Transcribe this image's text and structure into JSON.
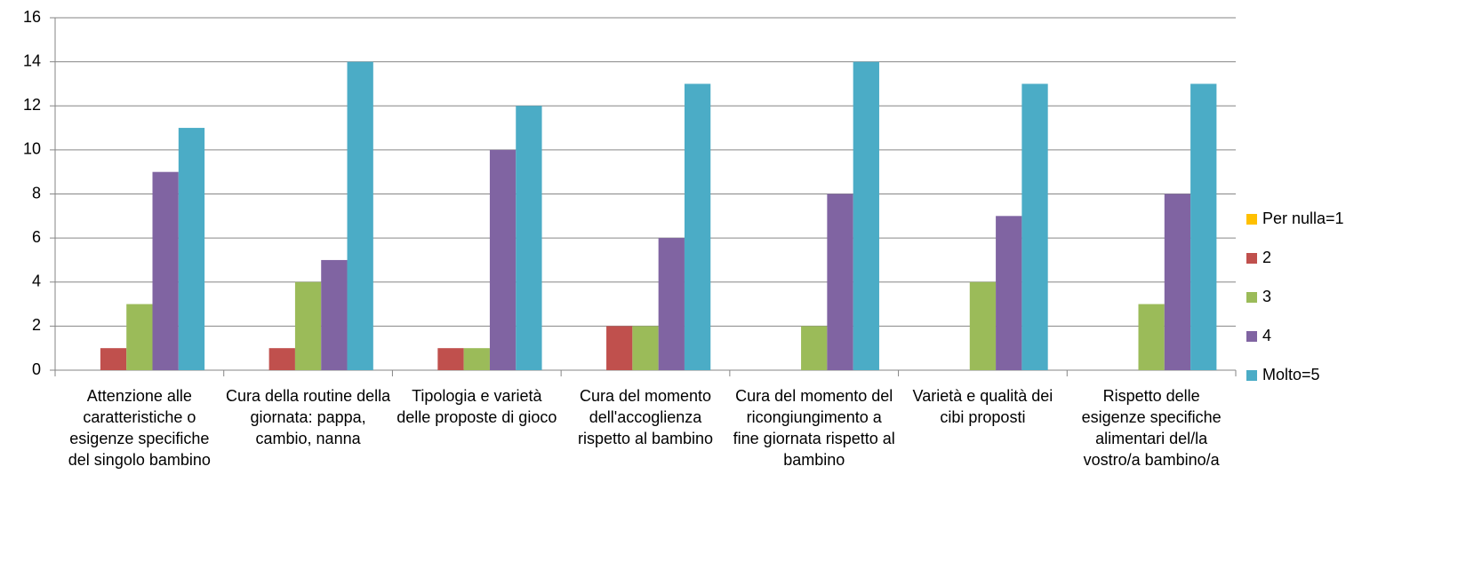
{
  "chart_data": {
    "type": "bar",
    "categories": [
      "Attenzione alle caratteristiche o esigenze specifiche del singolo bambino",
      "Cura della routine della giornata: pappa, cambio, nanna",
      "Tipologia e varietà delle proposte di gioco",
      "Cura del momento dell'accoglienza rispetto al bambino",
      "Cura del momento del ricongiungimento a fine giornata rispetto al bambino",
      "Varietà e qualità dei cibi proposti",
      "Rispetto delle esigenze specifiche alimentari del/la vostro/a bambino/a"
    ],
    "series": [
      {
        "name": "Per nulla=1",
        "color": "#FFC000",
        "values": [
          0,
          0,
          0,
          0,
          0,
          0,
          0
        ]
      },
      {
        "name": "2",
        "color": "#C0504D",
        "values": [
          1,
          1,
          1,
          2,
          0,
          0,
          0
        ]
      },
      {
        "name": "3",
        "color": "#9BBB59",
        "values": [
          3,
          4,
          1,
          2,
          2,
          4,
          3
        ]
      },
      {
        "name": "4",
        "color": "#8064A2",
        "values": [
          9,
          5,
          10,
          6,
          8,
          7,
          8
        ]
      },
      {
        "name": "Molto=5",
        "color": "#4BACC6",
        "values": [
          11,
          14,
          12,
          13,
          14,
          13,
          13
        ]
      }
    ],
    "ylim": [
      0,
      16
    ],
    "yticks": [
      0,
      2,
      4,
      6,
      8,
      10,
      12,
      14,
      16
    ],
    "grid": true,
    "legend": "right"
  }
}
